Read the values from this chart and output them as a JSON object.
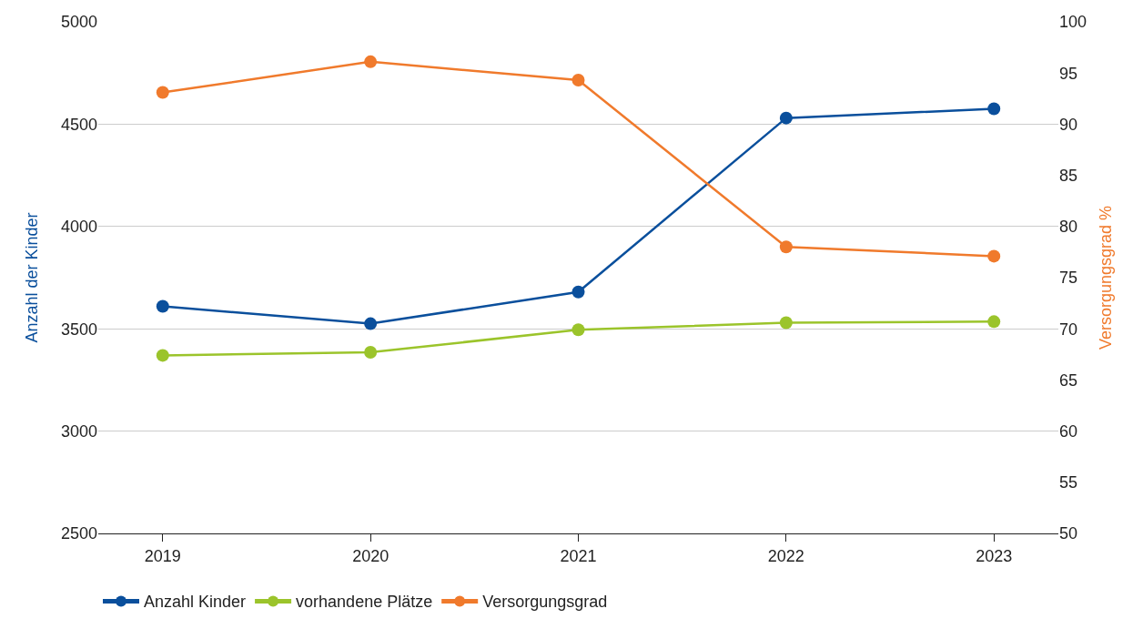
{
  "chart_data": {
    "type": "line",
    "categories": [
      "2019",
      "2020",
      "2021",
      "2022",
      "2023"
    ],
    "ylabel": "Anzahl der Kinder",
    "y2label": "Versorgungsgrad %",
    "ylim": [
      2500,
      5000
    ],
    "yticks": [
      2500,
      3000,
      3500,
      4000,
      4500,
      5000
    ],
    "y2lim": [
      50,
      100
    ],
    "y2ticks": [
      50,
      55,
      60,
      65,
      70,
      75,
      80,
      85,
      90,
      95,
      100
    ],
    "grid": "y",
    "legend": "bottom",
    "marker": "circle",
    "line_style": "solid",
    "series": [
      {
        "name": "Anzahl Kinder",
        "color": "#0a4f9c",
        "values": [
          3610,
          3525,
          3680,
          4530,
          4575
        ]
      },
      {
        "name": "vorhandene Plätze",
        "color": "#9bc42b",
        "values": [
          3370,
          3385,
          3495,
          3530,
          3535
        ]
      },
      {
        "name": "Versorgungsgrad",
        "color": "#f07a2c",
        "axis": "y2",
        "values": [
          93.1,
          96.1,
          94.3,
          78.0,
          77.1
        ]
      }
    ]
  }
}
